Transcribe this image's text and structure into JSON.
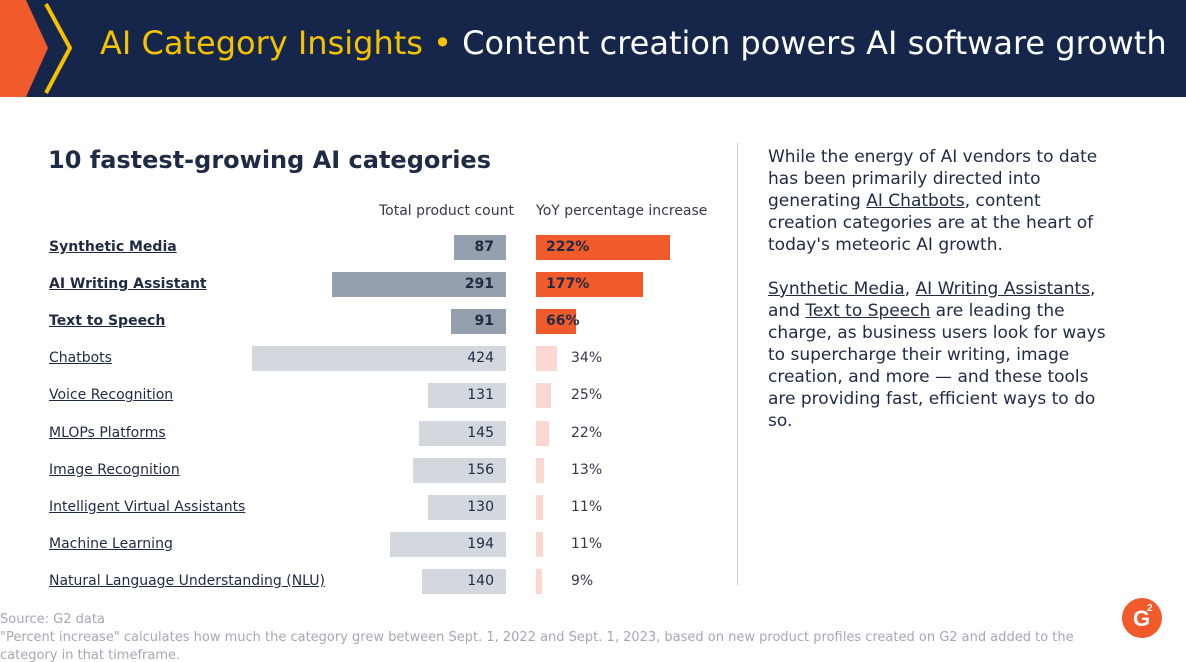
{
  "header": {
    "accent": "AI Category Insights",
    "separator": "•",
    "title": "Content creation powers AI software growth"
  },
  "chart_data": {
    "type": "bar",
    "title": "10 fastest-growing AI categories",
    "columns": [
      "Total product count",
      "YoY percentage increase"
    ],
    "categories": [
      "Synthetic Media",
      "AI Writing Assistant",
      "Text to Speech",
      "Chatbots",
      "Voice Recognition",
      "MLOPs Platforms",
      "Image Recognition",
      "Intelligent Virtual Assistants",
      "Machine Learning",
      "Natural Language Understanding (NLU)"
    ],
    "highlighted": [
      true,
      true,
      true,
      false,
      false,
      false,
      false,
      false,
      false,
      false
    ],
    "series": [
      {
        "name": "Total product count",
        "values": [
          87,
          291,
          91,
          424,
          131,
          145,
          156,
          130,
          194,
          140
        ]
      },
      {
        "name": "YoY percentage increase",
        "values": [
          222,
          177,
          66,
          34,
          25,
          22,
          13,
          11,
          11,
          9
        ],
        "labels": [
          "222%",
          "177%",
          "66%",
          "34%",
          "25%",
          "22%",
          "13%",
          "11%",
          "11%",
          "9%"
        ]
      }
    ],
    "colors": {
      "count_highlight": "#95a0ae",
      "count_regular": "#d3d8df",
      "yoy_highlight": "#f15a2b",
      "yoy_regular": "#fad7d0"
    }
  },
  "sidebar_text": {
    "p1": {
      "before": "While the energy of AI vendors to date has been primarily directed into generating ",
      "link": "AI Chatbots",
      "after": ", content creation categories are at the heart of today's meteoric AI growth."
    },
    "p2": {
      "link1": "Synthetic Media",
      "sep1": ", ",
      "link2": "AI Writing Assistants",
      "sep2": ", and ",
      "link3": "Text to Speech",
      "after": " are leading the charge, as business users look for ways to supercharge their writing, image creation, and more — and these tools are providing fast, efficient ways to do so."
    }
  },
  "footer": {
    "source": "Source: G2 data",
    "note_line1": "\"Percent increase\" calculates how much the category grew between Sept. 1, 2022 and Sept. 1, 2023, based on new product profiles created on G2 and added to the",
    "note_line2": "category in that timeframe."
  },
  "logo": {
    "text": "G",
    "superscript": "2"
  }
}
